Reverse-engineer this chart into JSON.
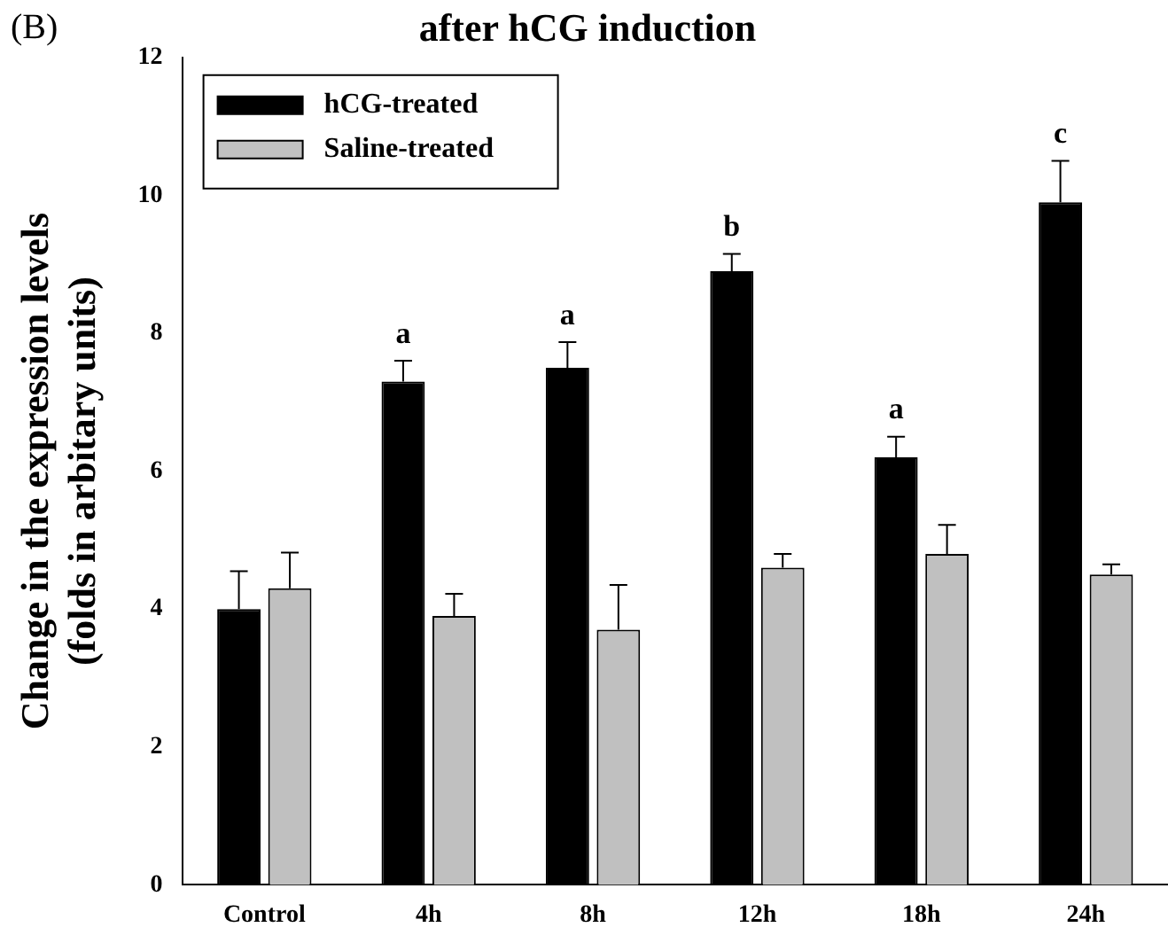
{
  "chart_data": {
    "type": "bar",
    "title": "after hCG induction",
    "ylabel": "Change in the expression levels\n(folds in arbitary units)",
    "categories": [
      "Control",
      "4h",
      "8h",
      "12h",
      "18h",
      "24h"
    ],
    "series": [
      {
        "name": "hCG-treated",
        "color": "#000000",
        "values": [
          4.0,
          7.3,
          7.5,
          8.9,
          6.2,
          9.9
        ],
        "errors": [
          [
            4.0,
            4.55
          ],
          [
            7.3,
            7.6
          ],
          [
            7.5,
            7.87
          ],
          [
            8.9,
            9.15
          ],
          [
            6.2,
            6.5
          ],
          [
            9.9,
            10.5
          ]
        ]
      },
      {
        "name": "Saline-treated",
        "color": "#c0c0c0",
        "values": [
          4.3,
          3.9,
          3.7,
          4.6,
          4.8,
          4.5
        ],
        "errors": [
          [
            4.3,
            4.82
          ],
          [
            3.9,
            4.22
          ],
          [
            3.7,
            4.35
          ],
          [
            4.6,
            4.8
          ],
          [
            4.8,
            5.22
          ],
          [
            4.5,
            4.65
          ]
        ]
      }
    ],
    "ylim": [
      0,
      12
    ],
    "yticks": [
      0,
      2,
      4,
      6,
      8,
      10,
      12
    ],
    "grid": false,
    "legend": "top left",
    "annotations": [
      "(B)",
      {
        "text": "a",
        "x": "4h",
        "y": 7.3
      },
      {
        "text": "a",
        "x": "8h",
        "y": 7.5
      },
      {
        "text": "b",
        "x": "12h",
        "y": 8.9
      },
      {
        "text": "a",
        "x": "18h",
        "y": 6.2
      },
      {
        "text": "c",
        "x": "24h",
        "y": 9.9
      }
    ]
  }
}
